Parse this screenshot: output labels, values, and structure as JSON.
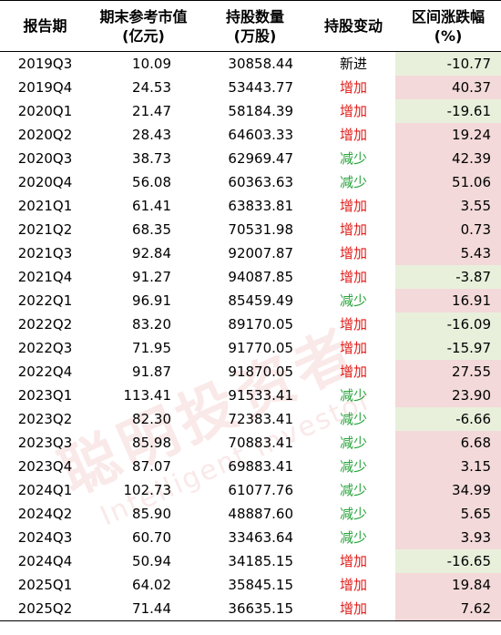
{
  "header": {
    "period": "报告期",
    "market_value": [
      "期末参考市值",
      "(亿元)"
    ],
    "shares": [
      "持股数量",
      "(万股)"
    ],
    "change": "持股变动",
    "range": [
      "区间涨跌幅",
      "(%)"
    ]
  },
  "watermark": {
    "line1": "聪明投资者",
    "line2": "Intelligent Investor"
  },
  "colors": {
    "increase": "#e0201c",
    "decrease": "#27a33b",
    "positive_fill": "#f3d9d9",
    "negative_fill": "#e8f0dc"
  },
  "rows": [
    {
      "period": "2019Q3",
      "value": "10.09",
      "shares": "30858.44",
      "change": "新进",
      "dir": "new",
      "pct": "-10.77"
    },
    {
      "period": "2019Q4",
      "value": "24.53",
      "shares": "53443.77",
      "change": "增加",
      "dir": "up",
      "pct": "40.37"
    },
    {
      "period": "2020Q1",
      "value": "21.47",
      "shares": "58184.39",
      "change": "增加",
      "dir": "up",
      "pct": "-19.61"
    },
    {
      "period": "2020Q2",
      "value": "28.43",
      "shares": "64603.33",
      "change": "增加",
      "dir": "up",
      "pct": "19.24"
    },
    {
      "period": "2020Q3",
      "value": "38.73",
      "shares": "62969.47",
      "change": "减少",
      "dir": "down",
      "pct": "42.39"
    },
    {
      "period": "2020Q4",
      "value": "56.08",
      "shares": "60363.63",
      "change": "减少",
      "dir": "down",
      "pct": "51.06"
    },
    {
      "period": "2021Q1",
      "value": "61.41",
      "shares": "63833.81",
      "change": "增加",
      "dir": "up",
      "pct": "3.55"
    },
    {
      "period": "2021Q2",
      "value": "68.35",
      "shares": "70531.98",
      "change": "增加",
      "dir": "up",
      "pct": "0.73"
    },
    {
      "period": "2021Q3",
      "value": "92.84",
      "shares": "92007.87",
      "change": "增加",
      "dir": "up",
      "pct": "5.43"
    },
    {
      "period": "2021Q4",
      "value": "91.27",
      "shares": "94087.85",
      "change": "增加",
      "dir": "up",
      "pct": "-3.87"
    },
    {
      "period": "2022Q1",
      "value": "96.91",
      "shares": "85459.49",
      "change": "减少",
      "dir": "down",
      "pct": "16.91"
    },
    {
      "period": "2022Q2",
      "value": "83.20",
      "shares": "89170.05",
      "change": "增加",
      "dir": "up",
      "pct": "-16.09"
    },
    {
      "period": "2022Q3",
      "value": "71.95",
      "shares": "91770.05",
      "change": "增加",
      "dir": "up",
      "pct": "-15.97"
    },
    {
      "period": "2022Q4",
      "value": "91.87",
      "shares": "91870.05",
      "change": "增加",
      "dir": "up",
      "pct": "27.55"
    },
    {
      "period": "2023Q1",
      "value": "113.41",
      "shares": "91533.41",
      "change": "减少",
      "dir": "down",
      "pct": "23.90"
    },
    {
      "period": "2023Q2",
      "value": "82.30",
      "shares": "72383.41",
      "change": "减少",
      "dir": "down",
      "pct": "-6.66"
    },
    {
      "period": "2023Q3",
      "value": "85.98",
      "shares": "70883.41",
      "change": "减少",
      "dir": "down",
      "pct": "6.68"
    },
    {
      "period": "2023Q4",
      "value": "87.07",
      "shares": "69883.41",
      "change": "减少",
      "dir": "down",
      "pct": "3.15"
    },
    {
      "period": "2024Q1",
      "value": "102.73",
      "shares": "61077.76",
      "change": "减少",
      "dir": "down",
      "pct": "34.99"
    },
    {
      "period": "2024Q2",
      "value": "85.90",
      "shares": "48887.60",
      "change": "减少",
      "dir": "down",
      "pct": "5.65"
    },
    {
      "period": "2024Q3",
      "value": "60.70",
      "shares": "33463.64",
      "change": "减少",
      "dir": "down",
      "pct": "3.93"
    },
    {
      "period": "2024Q4",
      "value": "50.94",
      "shares": "34185.15",
      "change": "增加",
      "dir": "up",
      "pct": "-16.65"
    },
    {
      "period": "2025Q1",
      "value": "64.02",
      "shares": "35845.15",
      "change": "增加",
      "dir": "up",
      "pct": "19.84"
    },
    {
      "period": "2025Q2",
      "value": "71.44",
      "shares": "36635.15",
      "change": "增加",
      "dir": "up",
      "pct": "7.62"
    }
  ]
}
